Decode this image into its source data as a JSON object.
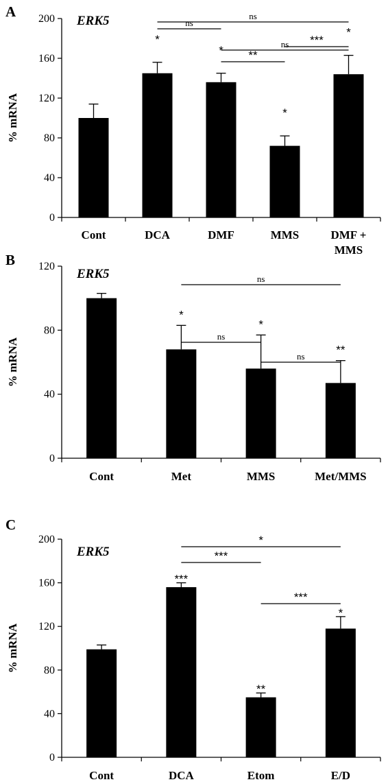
{
  "chart_data": [
    {
      "type": "bar",
      "panel": "A",
      "title": "ERK5",
      "ylabel": "% mRNA",
      "ylim": [
        0,
        200
      ],
      "yticks": [
        0,
        40,
        80,
        120,
        160,
        200
      ],
      "categories": [
        "Cont",
        "DCA",
        "DMF",
        "MMS",
        "DMF +\nMMS"
      ],
      "values": [
        100,
        145,
        136,
        72,
        144
      ],
      "errors": [
        14,
        11,
        9,
        10,
        19
      ],
      "bar_stars": [
        "",
        "*",
        "*",
        "*",
        "*"
      ],
      "comparisons": [
        {
          "from": 1,
          "to": 4,
          "label": "ns"
        },
        {
          "from": 2,
          "to": 4,
          "label": "ns"
        },
        {
          "from": 1,
          "to": 2,
          "label": "ns"
        },
        {
          "from": 3,
          "to": 4,
          "label": "***"
        },
        {
          "from": 2,
          "to": 3,
          "label": "**"
        }
      ],
      "color": "#000000"
    },
    {
      "type": "bar",
      "panel": "B",
      "title": "ERK5",
      "ylabel": "% mRNA",
      "ylim": [
        0,
        120
      ],
      "yticks": [
        0,
        40,
        80,
        120
      ],
      "categories": [
        "Cont",
        "Met",
        "MMS",
        "Met/MMS"
      ],
      "values": [
        100,
        68,
        56,
        47
      ],
      "errors": [
        3,
        15,
        21,
        14
      ],
      "bar_stars": [
        "",
        "*",
        "*",
        "**"
      ],
      "comparisons": [
        {
          "from": 1,
          "to": 3,
          "label": "ns"
        },
        {
          "from": 1,
          "to": 2,
          "label": "ns"
        },
        {
          "from": 2,
          "to": 3,
          "label": "ns"
        }
      ],
      "color": "#000000"
    },
    {
      "type": "bar",
      "panel": "C",
      "title": "ERK5",
      "ylabel": "% mRNA",
      "ylim": [
        0,
        200
      ],
      "yticks": [
        0,
        40,
        80,
        120,
        160,
        200
      ],
      "categories": [
        "Cont",
        "DCA",
        "Etom",
        "E/D"
      ],
      "values": [
        99,
        156,
        55,
        118
      ],
      "errors": [
        4,
        4,
        4,
        11
      ],
      "bar_stars": [
        "",
        "***",
        "**",
        "*"
      ],
      "comparisons": [
        {
          "from": 1,
          "to": 3,
          "label": "*"
        },
        {
          "from": 1,
          "to": 2,
          "label": "***"
        },
        {
          "from": 2,
          "to": 3,
          "label": "***"
        }
      ],
      "color": "#000000"
    }
  ]
}
